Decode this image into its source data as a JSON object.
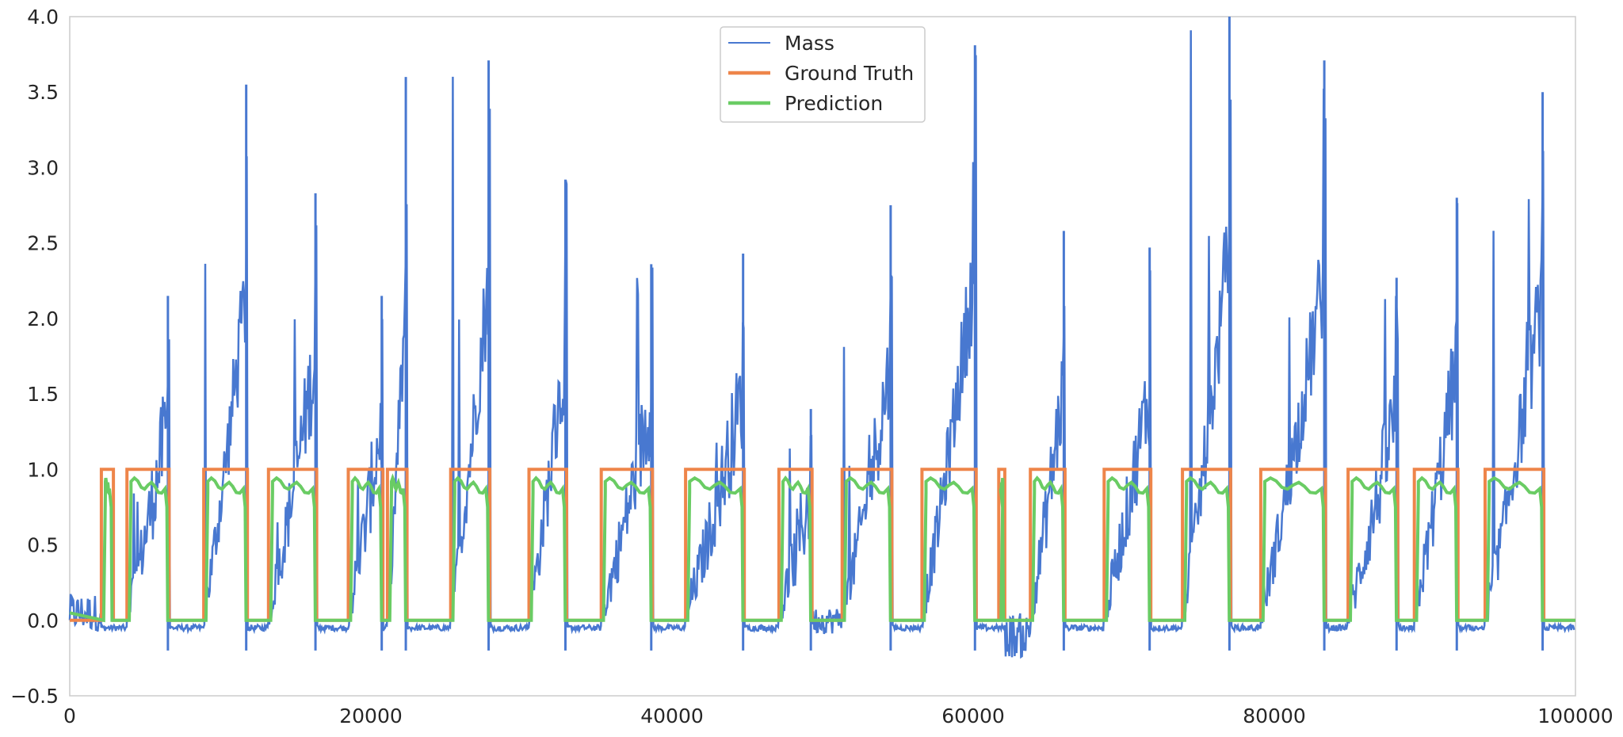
{
  "chart_data": {
    "type": "line",
    "title": "",
    "xlabel": "",
    "ylabel": "",
    "xlim": [
      0,
      100000
    ],
    "ylim": [
      -0.5,
      4.0
    ],
    "grid": false,
    "legend_position": "top-center",
    "x_ticks": [
      0,
      20000,
      40000,
      60000,
      80000,
      100000
    ],
    "x_tick_labels": [
      "0",
      "20000",
      "40000",
      "60000",
      "80000",
      "100000"
    ],
    "y_ticks": [
      -0.5,
      0.0,
      0.5,
      1.0,
      1.5,
      2.0,
      2.5,
      3.0,
      3.5,
      4.0
    ],
    "y_tick_labels": [
      "−0.5",
      "0.0",
      "0.5",
      "1.0",
      "1.5",
      "2.0",
      "2.5",
      "3.0",
      "3.5",
      "4.0"
    ],
    "cycles": [
      {
        "start": 2100,
        "end": 2900,
        "kind": "short",
        "peak": 1.0
      },
      {
        "start": 3800,
        "end": 6600,
        "kind": "event",
        "peak": 2.15
      },
      {
        "start": 8900,
        "end": 11800,
        "kind": "event",
        "peak": 3.55
      },
      {
        "start": 13200,
        "end": 16400,
        "kind": "event",
        "peak": 2.83
      },
      {
        "start": 18500,
        "end": 20800,
        "kind": "event",
        "peak": 2.15
      },
      {
        "start": 21100,
        "end": 22400,
        "kind": "event",
        "peak": 3.6
      },
      {
        "start": 25300,
        "end": 27900,
        "kind": "event",
        "peak": 3.71
      },
      {
        "start": 30500,
        "end": 33000,
        "kind": "event",
        "peak": 2.92
      },
      {
        "start": 35300,
        "end": 38700,
        "kind": "event",
        "peak": 2.36
      },
      {
        "start": 40900,
        "end": 44800,
        "kind": "event",
        "peak": 2.43
      },
      {
        "start": 47100,
        "end": 49300,
        "kind": "event",
        "peak": 1.4
      },
      {
        "start": 51300,
        "end": 54600,
        "kind": "event",
        "peak": 2.75
      },
      {
        "start": 56600,
        "end": 60200,
        "kind": "event",
        "peak": 3.81
      },
      {
        "start": 61700,
        "end": 62100,
        "kind": "short",
        "peak": 1.0
      },
      {
        "start": 63800,
        "end": 66100,
        "kind": "event",
        "peak": 2.58
      },
      {
        "start": 68700,
        "end": 71800,
        "kind": "event",
        "peak": 2.47
      },
      {
        "start": 73900,
        "end": 77100,
        "kind": "event",
        "peak": 4.0
      },
      {
        "start": 79100,
        "end": 83400,
        "kind": "event",
        "peak": 3.71
      },
      {
        "start": 84900,
        "end": 88200,
        "kind": "event",
        "peak": 2.27
      },
      {
        "start": 89300,
        "end": 92200,
        "kind": "event",
        "peak": 2.8
      },
      {
        "start": 94000,
        "end": 97900,
        "kind": "event",
        "peak": 3.5
      }
    ],
    "series": [
      {
        "name": "Mass",
        "color": "#4878d0",
        "description_points": "noisy sawtooth rising from ~0 at each cycle start to the listed peak, dropping to ~-0.05 baseline between cycles"
      },
      {
        "name": "Ground Truth",
        "color": "#ee854a",
        "description_points": "square wave: 1.0 during cycles, 0.0 between"
      },
      {
        "name": "Prediction",
        "color": "#6acc64",
        "description_points": "smoothed square wave: ~0.93 during cycles, 0.0 between"
      }
    ]
  }
}
